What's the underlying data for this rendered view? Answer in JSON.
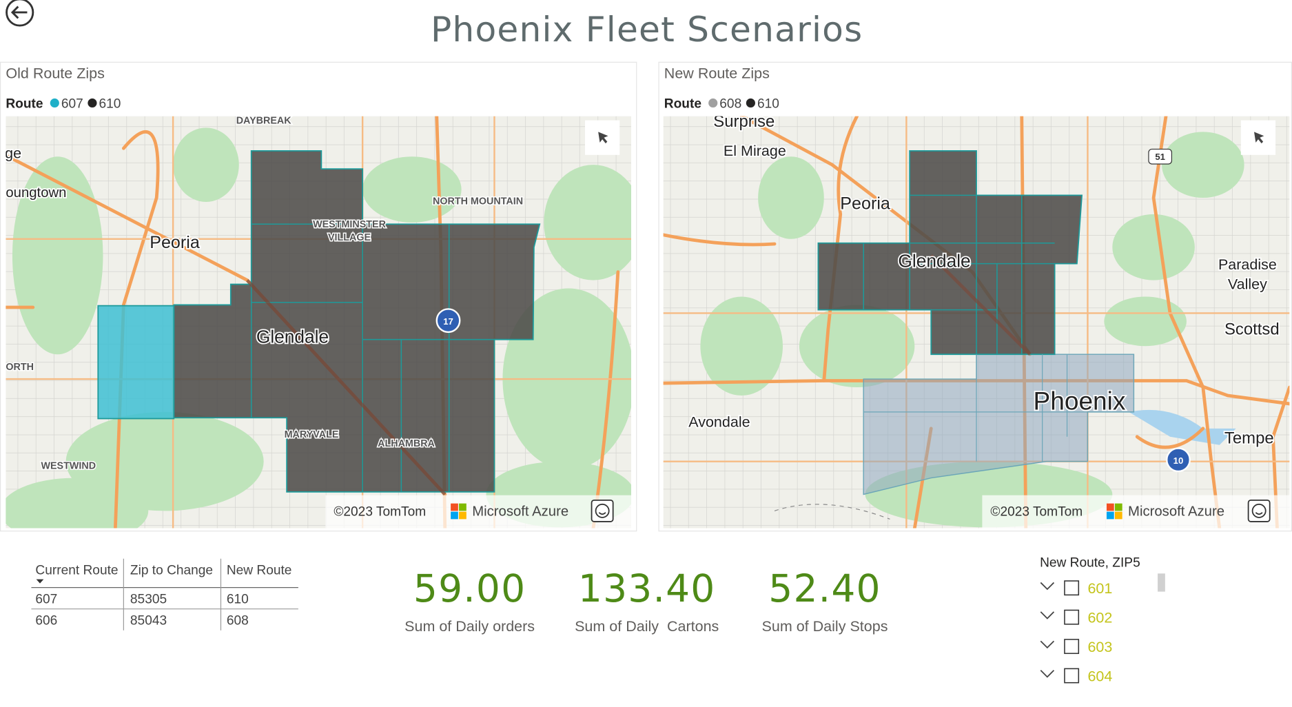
{
  "header": {
    "title": "Phoenix Fleet Scenarios"
  },
  "maps": [
    {
      "title": "Old Route Zips",
      "legend_title": "Route",
      "legend": [
        {
          "label": "607",
          "color": "#1fb0c8"
        },
        {
          "label": "610",
          "color": "#252423"
        }
      ],
      "place_labels": [
        "DAYBREAK",
        "ge",
        "oungtown",
        "NORTH MOUNTAIN",
        "WESTMINSTER",
        "VILLAGE",
        "Peoria",
        "Glendale",
        "17",
        "ORTH",
        "MARYVALE",
        "ALHAMBRA",
        "WESTWIND"
      ],
      "attribution": "©2023 TomTom",
      "brand": "Microsoft Azure"
    },
    {
      "title": "New Route Zips",
      "legend_title": "Route",
      "legend": [
        {
          "label": "608",
          "color": "#a0a0a0"
        },
        {
          "label": "610",
          "color": "#252423"
        }
      ],
      "place_labels": [
        "Surprise",
        "El Mirage",
        "51",
        "Peoria",
        "Glendale",
        "Paradise",
        "Valley",
        "Scottsd",
        "Phoenix",
        "Avondale",
        "Tempe",
        "10"
      ],
      "attribution": "©2023 TomTom",
      "brand": "Microsoft Azure"
    }
  ],
  "table": {
    "columns": [
      "Current Route",
      "Zip to Change",
      "New Route"
    ],
    "rows": [
      [
        "607",
        "85305",
        "610"
      ],
      [
        "606",
        "85043",
        "608"
      ]
    ]
  },
  "cards": [
    {
      "value": "59.00",
      "label": "Sum of Daily orders"
    },
    {
      "value": "133.40",
      "label": "Sum of Daily  Cartons"
    },
    {
      "value": "52.40",
      "label": "Sum of Daily Stops"
    }
  ],
  "slicer": {
    "title": "New Route, ZIP5",
    "items": [
      "601",
      "602",
      "603",
      "604"
    ]
  }
}
